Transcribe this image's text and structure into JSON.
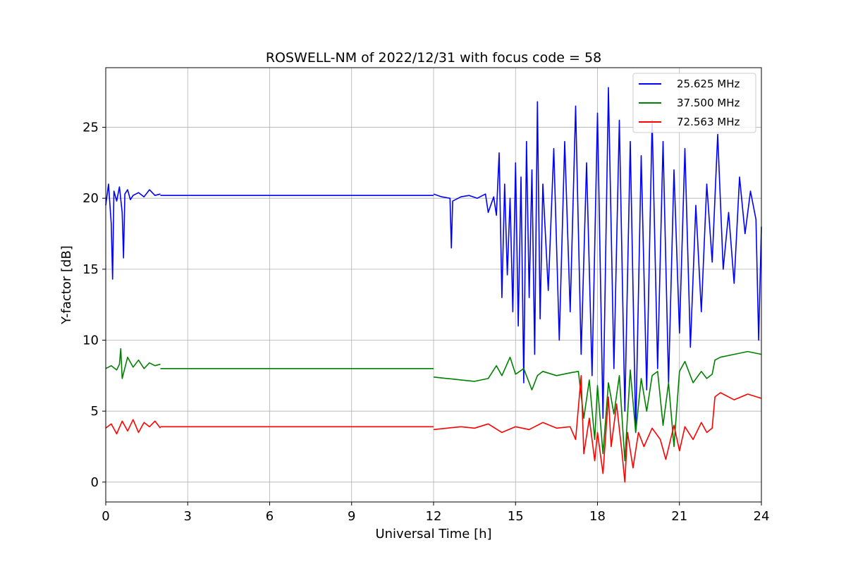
{
  "chart_data": {
    "type": "line",
    "title": "ROSWELL-NM of 2022/12/31 with focus code = 58",
    "xlabel": "Universal Time [h]",
    "ylabel": "Y-factor [dB]",
    "xlim": [
      0,
      24
    ],
    "ylim": [
      -1.4,
      29.2
    ],
    "xticks": [
      0,
      3,
      6,
      9,
      12,
      15,
      18,
      21,
      24
    ],
    "yticks": [
      0,
      5,
      10,
      15,
      20,
      25
    ],
    "grid": true,
    "legend_position": "top-right",
    "series": [
      {
        "name": "25.625 MHz",
        "color": "#0000ff",
        "segments": [
          {
            "x": [
              0,
              0.1,
              0.2,
              0.25,
              0.3,
              0.4,
              0.5,
              0.6,
              0.65,
              0.7,
              0.8,
              0.9,
              1.0,
              1.2,
              1.4,
              1.6,
              1.8,
              2.0
            ],
            "y": [
              19.5,
              21.0,
              18.2,
              14.3,
              20.5,
              19.8,
              20.8,
              19.0,
              15.8,
              20.3,
              20.6,
              19.9,
              20.2,
              20.4,
              20.1,
              20.6,
              20.2,
              20.3
            ]
          },
          {
            "x": [
              2.0,
              12.0
            ],
            "y": [
              20.2,
              20.2
            ]
          },
          {
            "x": [
              12.0,
              12.3,
              12.6,
              12.65,
              12.7,
              13.0,
              13.3,
              13.6,
              13.9,
              14.0,
              14.2,
              14.3,
              14.4,
              14.5,
              14.6,
              14.7,
              14.8,
              14.9,
              15.0,
              15.1,
              15.2,
              15.3,
              15.4,
              15.5,
              15.6,
              15.7,
              15.8,
              15.9,
              16.0,
              16.2,
              16.4,
              16.6,
              16.8,
              17.0,
              17.2,
              17.4,
              17.6,
              17.8,
              18.0,
              18.2,
              18.4,
              18.6,
              18.8,
              19.0,
              19.2,
              19.4,
              19.6,
              19.8,
              20.0,
              20.2,
              20.4,
              20.6,
              20.8,
              21.0,
              21.2,
              21.4,
              21.6,
              21.8,
              22.0,
              22.2,
              22.4,
              22.6,
              22.8,
              23.0,
              23.2,
              23.4,
              23.6,
              23.8,
              23.9,
              24.0
            ],
            "y": [
              20.3,
              20.1,
              20.0,
              16.5,
              19.8,
              20.1,
              20.2,
              20.0,
              20.3,
              19.0,
              20.1,
              18.8,
              23.2,
              13.0,
              21.0,
              14.6,
              20.0,
              12.0,
              22.5,
              11.0,
              21.5,
              7.0,
              24.0,
              13.0,
              22.0,
              9.0,
              26.8,
              11.5,
              21.0,
              13.5,
              23.5,
              10.0,
              24.0,
              12.0,
              26.5,
              9.0,
              22.5,
              7.5,
              26.0,
              4.5,
              27.8,
              8.0,
              25.5,
              5.0,
              24.0,
              3.5,
              23.0,
              6.5,
              25.5,
              8.0,
              24.0,
              7.0,
              22.0,
              10.5,
              23.5,
              9.5,
              19.5,
              12.0,
              21.0,
              15.5,
              24.5,
              15.0,
              19.0,
              14.0,
              21.5,
              17.5,
              20.5,
              18.5,
              10.0,
              18.0
            ]
          }
        ]
      },
      {
        "name": "37.500 MHz",
        "color": "#008000",
        "segments": [
          {
            "x": [
              0,
              0.2,
              0.4,
              0.5,
              0.55,
              0.6,
              0.8,
              1.0,
              1.2,
              1.4,
              1.6,
              1.8,
              2.0
            ],
            "y": [
              8.0,
              8.2,
              7.9,
              8.3,
              9.4,
              7.3,
              8.8,
              8.1,
              8.6,
              8.0,
              8.4,
              8.2,
              8.3
            ]
          },
          {
            "x": [
              2.0,
              12.0
            ],
            "y": [
              8.0,
              8.0
            ]
          },
          {
            "x": [
              12.0,
              12.5,
              13.0,
              13.5,
              14.0,
              14.3,
              14.5,
              14.8,
              15.0,
              15.3,
              15.6,
              15.8,
              16.0,
              16.5,
              17.0,
              17.3,
              17.5,
              17.7,
              17.9,
              18.0,
              18.2,
              18.4,
              18.6,
              18.8,
              19.0,
              19.2,
              19.4,
              19.6,
              19.8,
              20.0,
              20.2,
              20.4,
              20.6,
              20.8,
              21.0,
              21.2,
              21.5,
              21.8,
              22.0,
              22.2,
              22.3,
              22.5,
              23.0,
              23.5,
              24.0
            ],
            "y": [
              7.4,
              7.3,
              7.2,
              7.1,
              7.3,
              8.2,
              7.5,
              8.8,
              7.6,
              8.0,
              6.5,
              7.5,
              7.8,
              7.5,
              7.7,
              7.8,
              4.5,
              7.2,
              3.0,
              6.8,
              2.0,
              7.0,
              4.8,
              7.5,
              1.5,
              7.9,
              3.5,
              7.3,
              5.0,
              7.5,
              7.8,
              4.0,
              7.0,
              2.5,
              7.8,
              8.5,
              7.0,
              7.8,
              7.3,
              7.6,
              8.6,
              8.8,
              9.0,
              9.2,
              9.0
            ]
          }
        ]
      },
      {
        "name": "72.563 MHz",
        "color": "#ff0000",
        "segments": [
          {
            "x": [
              0,
              0.2,
              0.4,
              0.6,
              0.8,
              1.0,
              1.2,
              1.4,
              1.6,
              1.8,
              2.0
            ],
            "y": [
              3.8,
              4.1,
              3.4,
              4.3,
              3.6,
              4.4,
              3.5,
              4.2,
              3.9,
              4.3,
              3.8
            ]
          },
          {
            "x": [
              2.0,
              12.0
            ],
            "y": [
              3.9,
              3.9
            ]
          },
          {
            "x": [
              12.0,
              12.5,
              13.0,
              13.5,
              14.0,
              14.5,
              15.0,
              15.5,
              16.0,
              16.5,
              17.0,
              17.2,
              17.4,
              17.5,
              17.7,
              17.9,
              18.0,
              18.2,
              18.4,
              18.5,
              18.7,
              18.9,
              19.0,
              19.1,
              19.3,
              19.5,
              19.7,
              20.0,
              20.3,
              20.5,
              20.8,
              21.0,
              21.2,
              21.5,
              21.8,
              22.0,
              22.2,
              22.3,
              22.5,
              23.0,
              23.5,
              24.0
            ],
            "y": [
              3.7,
              3.8,
              3.9,
              3.8,
              4.1,
              3.5,
              3.9,
              3.7,
              4.2,
              3.8,
              3.9,
              3.0,
              7.5,
              2.0,
              4.5,
              1.5,
              3.5,
              0.6,
              6.0,
              2.5,
              5.5,
              2.0,
              0.0,
              3.5,
              1.0,
              3.5,
              2.5,
              3.8,
              3.0,
              1.6,
              4.0,
              2.2,
              3.9,
              3.0,
              4.2,
              3.5,
              3.8,
              6.0,
              6.3,
              5.8,
              6.2,
              5.9
            ]
          }
        ]
      }
    ]
  }
}
